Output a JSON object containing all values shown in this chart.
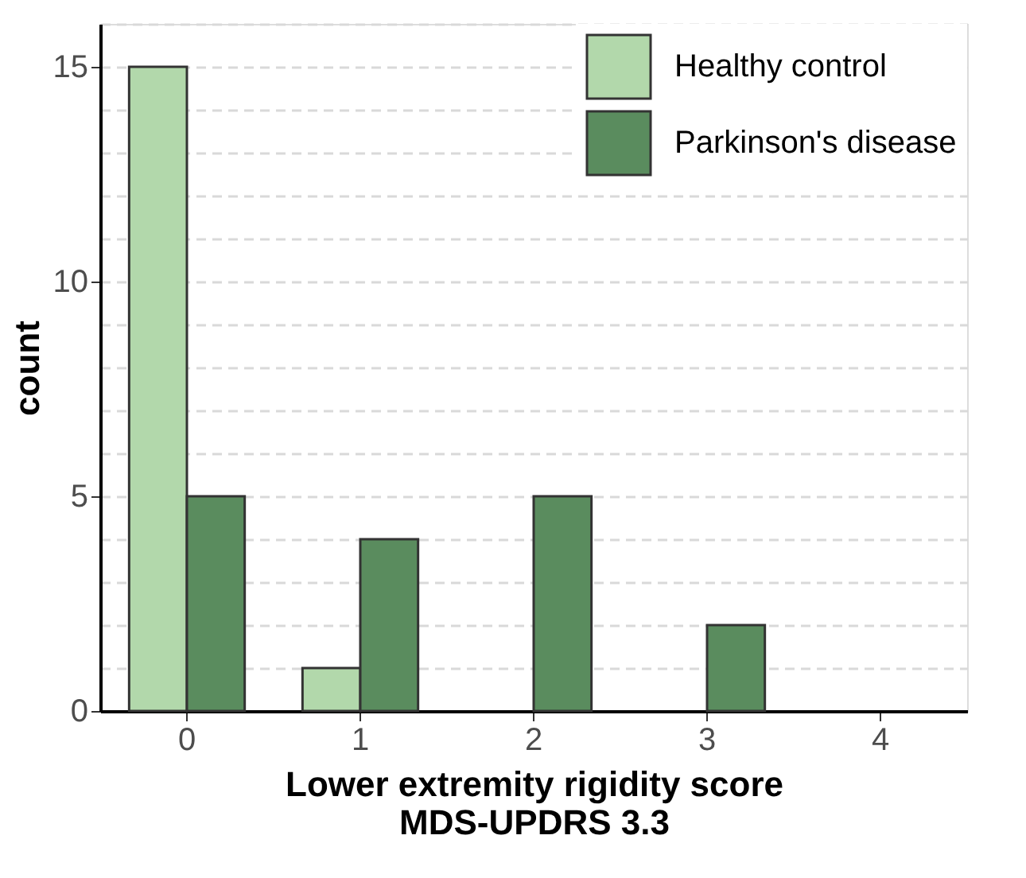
{
  "chart_data": {
    "type": "bar",
    "xlabel": "Lower extremity rigidity score\nMDS-UPDRS 3.3",
    "ylabel": "count",
    "categories": [
      "0",
      "1",
      "2",
      "3",
      "4"
    ],
    "series": [
      {
        "name": "Healthy control",
        "color": "#b2d8ab",
        "values": [
          15,
          1,
          0,
          0,
          0
        ]
      },
      {
        "name": "Parkinson's disease",
        "color": "#5a8c5e",
        "values": [
          5,
          4,
          5,
          2,
          0
        ]
      }
    ],
    "ylim": [
      0,
      16
    ],
    "yticks": [
      0,
      {
        "value": 1,
        "label": null
      },
      {
        "value": 2,
        "label": null
      },
      {
        "value": 3,
        "label": null
      },
      {
        "value": 4,
        "label": null
      },
      5,
      {
        "value": 6,
        "label": null
      },
      {
        "value": 7,
        "label": null
      },
      {
        "value": 8,
        "label": null
      },
      {
        "value": 9,
        "label": null
      },
      10,
      {
        "value": 11,
        "label": null
      },
      {
        "value": 12,
        "label": null
      },
      {
        "value": 13,
        "label": null
      },
      {
        "value": 14,
        "label": null
      },
      15,
      {
        "value": 16,
        "label": null
      }
    ],
    "grid": "y",
    "line_style": "dashed",
    "legend": "top right"
  }
}
